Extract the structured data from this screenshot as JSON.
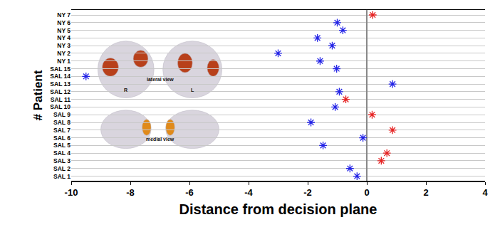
{
  "chart_data": {
    "type": "scatter",
    "orientation": "horizontal",
    "x_label": "Distance from decision plane",
    "y_label": "# Patient",
    "categories": [
      "SAL 1",
      "SAL 2",
      "SAL 3",
      "SAL 4",
      "SAL 5",
      "SAL 6",
      "SAL 7",
      "SAL 8",
      "SAL 9",
      "SAL 10",
      "SAL 11",
      "SAL 12",
      "SAL 13",
      "SAL 14",
      "SAL 15",
      "NY 1",
      "NY 2",
      "NY 3",
      "NY 4",
      "NY 5",
      "NY 6",
      "NY 7"
    ],
    "values": [
      -0.33,
      -0.57,
      0.49,
      0.68,
      -1.48,
      -0.13,
      0.87,
      -1.89,
      0.18,
      -1.07,
      -0.71,
      -0.93,
      0.87,
      -9.5,
      -1.02,
      -1.58,
      -3.0,
      -1.17,
      -1.67,
      -0.81,
      -1.0,
      0.2
    ],
    "colors": [
      "#2323e6",
      "#2323e6",
      "#e62323",
      "#e62323",
      "#2323e6",
      "#2323e6",
      "#e62323",
      "#2323e6",
      "#e62323",
      "#2323e6",
      "#e62323",
      "#2323e6",
      "#2323e6",
      "#2323e6",
      "#2323e6",
      "#2323e6",
      "#2323e6",
      "#2323e6",
      "#2323e6",
      "#2323e6",
      "#2323e6",
      "#e62323"
    ],
    "marker": "asterisk",
    "xlim": [
      -10,
      4
    ],
    "xticks": [
      -10,
      -8,
      -6,
      -4,
      -2,
      0,
      2,
      4
    ],
    "grid": true,
    "annotations": [
      "R",
      "L",
      "lateral view",
      "medial view"
    ]
  }
}
